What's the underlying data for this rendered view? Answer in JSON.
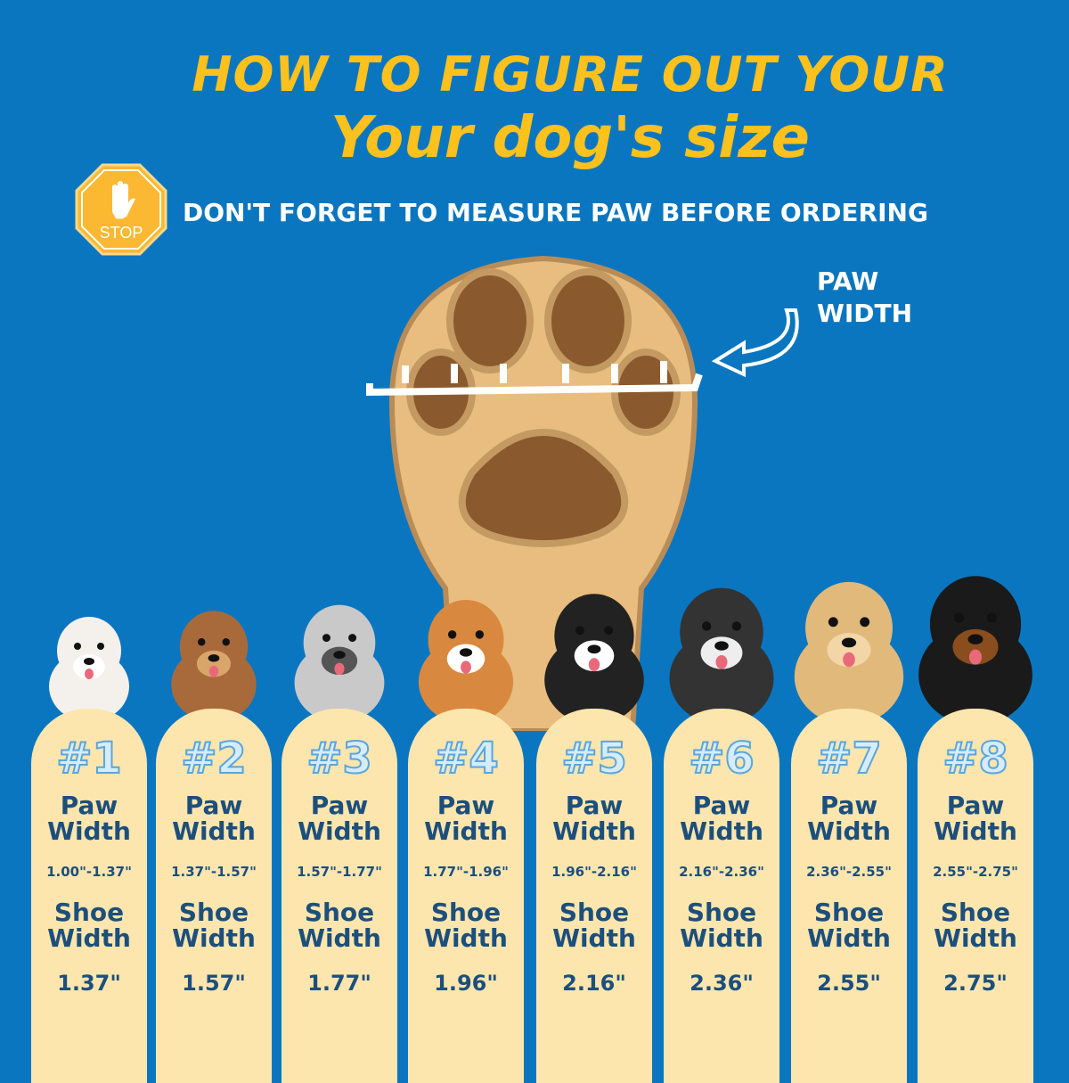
{
  "title_line1": "HOW TO FIGURE OUT YOUR",
  "title_line2": "Your dog's size",
  "stop_sign": "STOP",
  "warning": "DON'T FORGET TO MEASURE PAW BEFORE ORDERING",
  "paw_label": {
    "line1": "PAW",
    "line2": "WIDTH"
  },
  "colors": {
    "background": "#0b76c0",
    "title": "#fcc11d",
    "card": "#fde6ae",
    "card_text": "#1c4f7c"
  },
  "sizes": [
    {
      "number": "#1",
      "paw_label": "Paw Width",
      "paw_range": "1.00\"-1.37\"",
      "shoe_label": "Shoe Width",
      "shoe_width": "1.37\""
    },
    {
      "number": "#2",
      "paw_label": "Paw Width",
      "paw_range": "1.37\"-1.57\"",
      "shoe_label": "Shoe Width",
      "shoe_width": "1.57\""
    },
    {
      "number": "#3",
      "paw_label": "Paw Width",
      "paw_range": "1.57\"-1.77\"",
      "shoe_label": "Shoe Width",
      "shoe_width": "1.77\""
    },
    {
      "number": "#4",
      "paw_label": "Paw Width",
      "paw_range": "1.77\"-1.96\"",
      "shoe_label": "Shoe Width",
      "shoe_width": "1.96\""
    },
    {
      "number": "#5",
      "paw_label": "Paw Width",
      "paw_range": "1.96\"-2.16\"",
      "shoe_label": "Shoe Width",
      "shoe_width": "2.16\""
    },
    {
      "number": "#6",
      "paw_label": "Paw Width",
      "paw_range": "2.16\"-2.36\"",
      "shoe_label": "Shoe Width",
      "shoe_width": "2.36\""
    },
    {
      "number": "#7",
      "paw_label": "Paw Width",
      "paw_range": "2.36\"-2.55\"",
      "shoe_label": "Shoe Width",
      "shoe_width": "2.55\""
    },
    {
      "number": "#8",
      "paw_label": "Paw Width",
      "paw_range": "2.55\"-2.75\"",
      "shoe_label": "Shoe Width",
      "shoe_width": "2.75\""
    }
  ]
}
